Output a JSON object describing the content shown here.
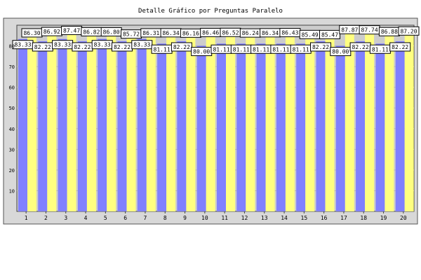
{
  "chart_data": {
    "type": "bar",
    "title": "Detalle Gráfico por Preguntas Paralelo",
    "categories": [
      "1",
      "2",
      "3",
      "4",
      "5",
      "6",
      "7",
      "8",
      "9",
      "10",
      "11",
      "12",
      "13",
      "14",
      "15",
      "16",
      "17",
      "18",
      "19",
      "20"
    ],
    "series": [
      {
        "values": [
          83.33,
          82.22,
          83.33,
          82.22,
          83.33,
          82.22,
          83.33,
          81.11,
          82.22,
          80.0,
          81.11,
          81.11,
          81.11,
          81.11,
          81.11,
          82.22,
          80.0,
          82.22,
          81.11,
          82.22
        ]
      },
      {
        "values": [
          86.3,
          86.92,
          87.47,
          86.82,
          86.8,
          85.72,
          86.31,
          86.34,
          86.16,
          86.46,
          86.52,
          86.24,
          86.34,
          86.43,
          85.49,
          85.47,
          87.87,
          87.74,
          86.88,
          87.2
        ]
      }
    ],
    "xlabel": "",
    "ylabel": "",
    "ylim": [
      0,
      90
    ],
    "yticks": [
      10,
      20,
      30,
      40,
      50,
      60,
      70,
      80
    ],
    "grid": true,
    "colors": {
      "series1": "#8080ff",
      "series2": "#ffff80",
      "plot_bg": "#cccccc",
      "frame_bg": "#d8d8d8"
    }
  }
}
